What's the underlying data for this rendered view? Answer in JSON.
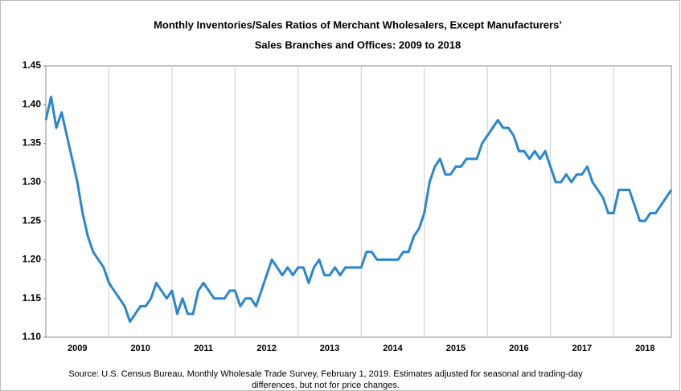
{
  "chart_data": {
    "type": "line",
    "title": [
      "Monthly Inventories/Sales Ratios of Merchant Wholesalers, Except Manufacturers’",
      "Sales Branches and Offices: 2009 to 2018"
    ],
    "source": [
      "Source: U.S. Census Bureau, Monthly Wholesale Trade Survey, February 1, 2019. Estimates adjusted for seasonal and trading-day",
      "differences, but not for price changes."
    ],
    "categories": [
      null,
      null,
      null,
      null,
      null,
      null,
      "2009",
      null,
      null,
      null,
      null,
      null,
      null,
      null,
      null,
      null,
      null,
      null,
      "2010",
      null,
      null,
      null,
      null,
      null,
      null,
      null,
      null,
      null,
      null,
      null,
      "2011",
      null,
      null,
      null,
      null,
      null,
      null,
      null,
      null,
      null,
      null,
      null,
      "2012",
      null,
      null,
      null,
      null,
      null,
      null,
      null,
      null,
      null,
      null,
      null,
      "2013",
      null,
      null,
      null,
      null,
      null,
      null,
      null,
      null,
      null,
      null,
      null,
      "2014",
      null,
      null,
      null,
      null,
      null,
      null,
      null,
      null,
      null,
      null,
      null,
      "2015",
      null,
      null,
      null,
      null,
      null,
      null,
      null,
      null,
      null,
      null,
      null,
      "2016",
      null,
      null,
      null,
      null,
      null,
      null,
      null,
      null,
      null,
      null,
      null,
      "2017",
      null,
      null,
      null,
      null,
      null,
      null,
      null,
      null,
      null,
      null,
      null,
      "2018",
      null,
      null,
      null,
      null,
      null
    ],
    "values": [
      1.38,
      1.41,
      1.37,
      1.39,
      1.36,
      1.33,
      1.3,
      1.26,
      1.23,
      1.21,
      1.2,
      1.19,
      1.17,
      1.16,
      1.15,
      1.14,
      1.12,
      1.13,
      1.14,
      1.14,
      1.15,
      1.17,
      1.16,
      1.15,
      1.16,
      1.13,
      1.15,
      1.13,
      1.13,
      1.16,
      1.17,
      1.16,
      1.15,
      1.15,
      1.15,
      1.16,
      1.16,
      1.14,
      1.15,
      1.15,
      1.14,
      1.16,
      1.18,
      1.2,
      1.19,
      1.18,
      1.19,
      1.18,
      1.19,
      1.19,
      1.17,
      1.19,
      1.2,
      1.18,
      1.18,
      1.19,
      1.18,
      1.19,
      1.19,
      1.19,
      1.19,
      1.21,
      1.21,
      1.2,
      1.2,
      1.2,
      1.2,
      1.2,
      1.21,
      1.21,
      1.23,
      1.24,
      1.26,
      1.3,
      1.32,
      1.33,
      1.31,
      1.31,
      1.32,
      1.32,
      1.33,
      1.33,
      1.33,
      1.35,
      1.36,
      1.37,
      1.38,
      1.37,
      1.37,
      1.36,
      1.34,
      1.34,
      1.33,
      1.34,
      1.33,
      1.34,
      1.32,
      1.3,
      1.3,
      1.31,
      1.3,
      1.31,
      1.31,
      1.32,
      1.3,
      1.29,
      1.28,
      1.26,
      1.26,
      1.29,
      1.29,
      1.29,
      1.27,
      1.25,
      1.25,
      1.26,
      1.26,
      1.27,
      1.28,
      1.29
    ],
    "color": "#2a86cf",
    "ylim": [
      1.1,
      1.45
    ],
    "yticks": [
      {
        "value": 1.1,
        "label": "1.10"
      },
      1.15,
      {
        "value": 1.2,
        "label": "1.20"
      },
      1.25,
      {
        "value": 1.3,
        "label": "1.30"
      },
      1.35,
      {
        "value": 1.4,
        "label": "1.40"
      },
      1.45
    ],
    "xgrid": true
  }
}
